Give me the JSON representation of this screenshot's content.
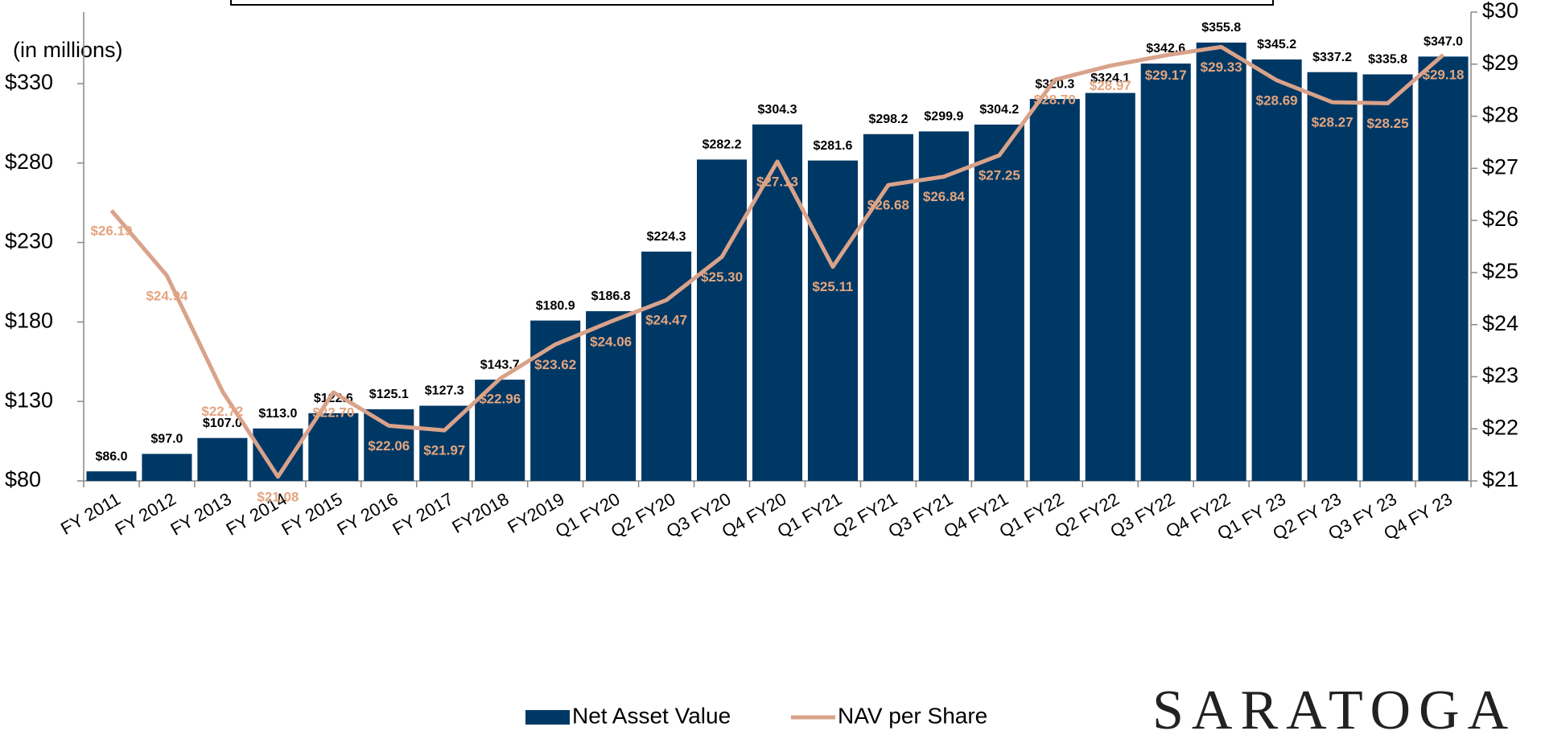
{
  "chart_data": {
    "type": "bar",
    "y_axis_note": "(in millions)",
    "categories": [
      "FY 2011",
      "FY 2012",
      "FY 2013",
      "FY 2014",
      "FY 2015",
      "FY 2016",
      "FY 2017",
      "FY2018",
      "FY2019",
      "Q1 FY20",
      "Q2 FY20",
      "Q3 FY20",
      "Q4 FY20",
      "Q1 FY21",
      "Q2 FY21",
      "Q3 FY21",
      "Q4 FY21",
      "Q1 FY22",
      "Q2 FY22",
      "Q3 FY22",
      "Q4 FY22",
      "Q1 FY 23",
      "Q2 FY 23",
      "Q3 FY 23",
      "Q4 FY 23"
    ],
    "series": [
      {
        "name": "Net Asset Value",
        "type": "bar",
        "color": "#003865",
        "values": [
          86.0,
          97.0,
          107.0,
          113.0,
          122.6,
          125.1,
          127.3,
          143.7,
          180.9,
          186.8,
          224.3,
          282.2,
          304.3,
          281.6,
          298.2,
          299.9,
          304.2,
          320.3,
          324.1,
          342.6,
          355.8,
          345.2,
          337.2,
          335.8,
          347.0
        ],
        "value_labels": [
          "$86.0",
          "$97.0",
          "$107.0",
          "$113.0",
          "$122.6",
          "$125.1",
          "$127.3",
          "$143.7",
          "$180.9",
          "$186.8",
          "$224.3",
          "$282.2",
          "$304.3",
          "$281.6",
          "$298.2",
          "$299.9",
          "$304.2",
          "$320.3",
          "$324.1",
          "$342.6",
          "$355.8",
          "$345.2",
          "$337.2",
          "$335.8",
          "$347.0"
        ]
      },
      {
        "name": "NAV per Share",
        "type": "line",
        "axis": "y2",
        "color": "#d9a28a",
        "label_color": "#e3a57f",
        "values": [
          26.19,
          24.94,
          22.72,
          21.08,
          22.7,
          22.06,
          21.97,
          22.96,
          23.62,
          24.06,
          24.47,
          25.3,
          27.13,
          25.11,
          26.68,
          26.84,
          27.25,
          28.7,
          28.97,
          29.17,
          29.33,
          28.69,
          28.27,
          28.25,
          29.18
        ],
        "value_labels": [
          "$26.19",
          "$24.94",
          "$22.72",
          "$21.08",
          "$22.70",
          "$22.06",
          "$21.97",
          "$22.96",
          "$23.62",
          "$24.06",
          "$24.47",
          "$25.30",
          "$27.13",
          "$25.11",
          "$26.68",
          "$26.84",
          "$27.25",
          "$28.70",
          "$28.97",
          "$29.17",
          "$29.33",
          "$28.69",
          "$28.27",
          "$28.25",
          "$29.18"
        ]
      }
    ],
    "ylim": [
      80,
      375
    ],
    "yticks": [
      {
        "value": 80,
        "label": "$80"
      },
      {
        "value": 130,
        "label": "$130"
      },
      {
        "value": 180,
        "label": "$180"
      },
      {
        "value": 230,
        "label": "$230"
      },
      {
        "value": 280,
        "label": "$280"
      },
      {
        "value": 330,
        "label": "$330"
      }
    ],
    "y2lim": [
      21,
      30
    ],
    "y2ticks": [
      {
        "value": 21,
        "label": "$21"
      },
      {
        "value": 22,
        "label": "$22"
      },
      {
        "value": 23,
        "label": "$23"
      },
      {
        "value": 24,
        "label": "$24"
      },
      {
        "value": 25,
        "label": "$25"
      },
      {
        "value": 26,
        "label": "$26"
      },
      {
        "value": 27,
        "label": "$27"
      },
      {
        "value": 28,
        "label": "$28"
      },
      {
        "value": 29,
        "label": "$29"
      },
      {
        "value": 30,
        "label": "$30"
      }
    ],
    "legend": "bottom",
    "logo": "SARATOGA"
  }
}
